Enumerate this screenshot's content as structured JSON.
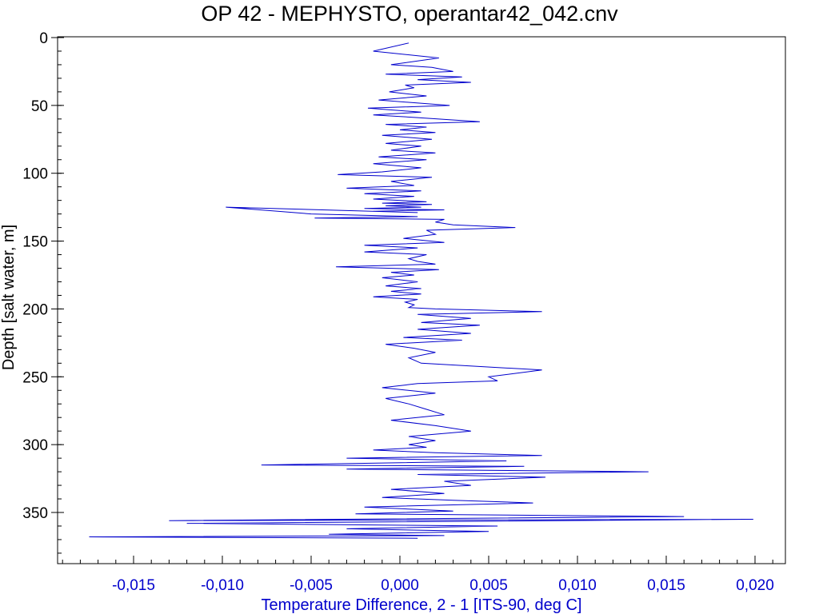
{
  "colors": {
    "series": "#0000cc",
    "axis_x_text": "#0000cc",
    "axis_y_text": "#000000",
    "frame": "#000000",
    "background": "#ffffff"
  },
  "chart_data": {
    "type": "line",
    "title": "OP 42 - MEPHYSTO, operantar42_042.cnv",
    "xlabel": "Temperature Difference, 2 - 1 [ITS-90, deg C]",
    "ylabel": "Depth [salt water, m]",
    "xlim": [
      -0.0195,
      0.0215
    ],
    "ylim": [
      0,
      388
    ],
    "y_inverted": true,
    "grid": false,
    "xticks": [
      -0.015,
      -0.01,
      -0.005,
      0.0,
      0.005,
      0.01,
      0.015,
      0.02
    ],
    "xtick_labels": [
      "-0,015",
      "-0,010",
      "-0,005",
      "0,000",
      "0,005",
      "0,010",
      "0,015",
      "0,020"
    ],
    "yticks": [
      0,
      50,
      100,
      150,
      200,
      250,
      300,
      350
    ],
    "ytick_labels": [
      "0",
      "50",
      "100",
      "150",
      "200",
      "250",
      "300",
      "350"
    ],
    "series": [
      {
        "x": [
          0.0005,
          -0.0015,
          0.0022,
          -0.0005,
          0.0018,
          0.003,
          -0.0008,
          0.0035,
          0.001,
          0.004,
          0.0003,
          0.0008,
          -0.0006,
          0.0015,
          -0.0012,
          0.0028,
          -0.0018,
          0.0012,
          -0.0015,
          0.001,
          0.0045,
          -0.0008,
          0.0015,
          0.0,
          0.002,
          -0.001,
          0.0018,
          -0.0008,
          0.0012,
          -0.0005,
          0.002,
          -0.0012,
          0.0015,
          -0.0015,
          0.0012,
          -0.001,
          -0.0035,
          0.0018,
          -0.0005,
          0.0008,
          -0.003,
          0.0012,
          -0.002,
          0.0008,
          -0.0015,
          0.0015,
          -0.001,
          0.0018,
          -0.0008,
          0.0012,
          -0.002,
          0.0025,
          -0.0015,
          0.001,
          -0.0098,
          -0.005,
          0.001,
          -0.0048,
          0.0025,
          0.002,
          0.003,
          0.0065,
          0.0015,
          0.002,
          0.0002,
          0.0025,
          -0.002,
          0.001,
          -0.002,
          0.0015,
          0.0005,
          0.001,
          0.002,
          -0.0036,
          0.0022,
          -0.0005,
          0.0008,
          -0.001,
          0.001,
          -0.0008,
          0.0012,
          -0.0005,
          0.0012,
          -0.0015,
          0.001,
          0.0003,
          0.0008,
          0.0005,
          0.002,
          0.008,
          0.001,
          0.004,
          0.0012,
          0.0045,
          0.001,
          0.004,
          0.0002,
          0.0035,
          -0.0008,
          0.0008,
          0.002,
          0.0005,
          0.0012,
          0.008,
          0.005,
          0.0055,
          0.001,
          -0.001,
          0.002,
          -0.0008,
          0.0005,
          0.0015,
          0.0025,
          -0.0005,
          0.002,
          0.004,
          0.0005,
          0.002,
          0.0005,
          0.0015,
          -0.0015,
          0.002,
          0.008,
          -0.003,
          0.006,
          -0.0078,
          0.007,
          -0.003,
          0.014,
          0.001,
          0.0082,
          0.0025,
          0.004,
          -0.0005,
          0.0025,
          -0.001,
          0.003,
          0.0075,
          -0.002,
          0.003,
          -0.0025,
          0.016,
          -0.013,
          0.0199,
          -0.012,
          0.0055,
          -0.003,
          0.005,
          -0.004,
          0.0025,
          -0.0175,
          0.001,
          0.0005
        ],
        "y": [
          4,
          10,
          15,
          20,
          22,
          25,
          27,
          29,
          31,
          33,
          35,
          37,
          40,
          43,
          46,
          50,
          52,
          55,
          57,
          59,
          62,
          64,
          66,
          68,
          70,
          72,
          75,
          78,
          80,
          83,
          85,
          88,
          90,
          93,
          96,
          99,
          101,
          103,
          106,
          109,
          111,
          113,
          115,
          117,
          119,
          121,
          122,
          123,
          124,
          125,
          126,
          127,
          128,
          129,
          125,
          130,
          132,
          133,
          134,
          136,
          138,
          140,
          142,
          145,
          148,
          151,
          153,
          155,
          158,
          160,
          163,
          165,
          167,
          169,
          171,
          173,
          175,
          177,
          180,
          183,
          185,
          187,
          189,
          191,
          193,
          195,
          197,
          199,
          200,
          202,
          204,
          207,
          210,
          212,
          215,
          218,
          221,
          223,
          226,
          229,
          232,
          236,
          240,
          245,
          250,
          253,
          255,
          258,
          262,
          266,
          270,
          274,
          278,
          282,
          286,
          290,
          294,
          297,
          300,
          302,
          304,
          306,
          308,
          310,
          312,
          315,
          316,
          318,
          320,
          322,
          324,
          327,
          330,
          333,
          336,
          339,
          341,
          343,
          346,
          349,
          351,
          353,
          356,
          355,
          358,
          360,
          362,
          364,
          366,
          367,
          368,
          369,
          369
        ]
      }
    ]
  }
}
